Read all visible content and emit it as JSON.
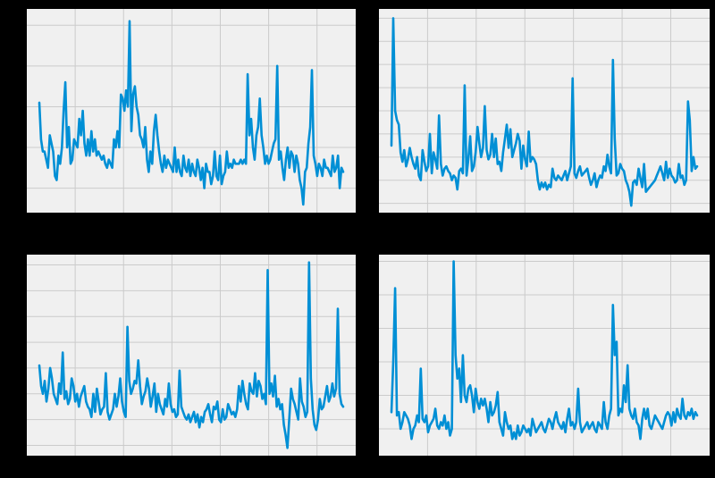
{
  "figure": {
    "background": "#000000",
    "panel_background": "#f0f0f0",
    "grid_color": "#cbcbcb",
    "line_color": "#008fd5"
  },
  "chart_data": [
    {
      "type": "line",
      "panel": "top-left",
      "title": "",
      "xlabel": "",
      "ylabel": "",
      "grid": true,
      "ylim": [
        0.4,
        5.4
      ],
      "y_ticks": [
        1,
        2,
        3,
        4,
        5
      ],
      "series": [
        {
          "name": "",
          "values": [
            3.1,
            2.2,
            1.9,
            1.9,
            1.7,
            1.5,
            2.3,
            2.1,
            1.9,
            1.3,
            1.2,
            1.8,
            1.6,
            2.0,
            2.9,
            3.6,
            2.0,
            2.5,
            1.6,
            1.7,
            2.2,
            2.1,
            2.0,
            2.7,
            2.3,
            2.9,
            2.1,
            1.8,
            2.2,
            1.8,
            2.4,
            1.9,
            2.2,
            1.8,
            1.9,
            1.8,
            1.7,
            1.8,
            1.6,
            1.5,
            1.7,
            1.6,
            1.5,
            2.2,
            2.0,
            2.4,
            2.0,
            3.3,
            3.2,
            2.9,
            3.4,
            3.0,
            5.1,
            2.4,
            3.3,
            3.5,
            3.0,
            2.8,
            2.3,
            2.2,
            2.0,
            2.5,
            1.7,
            1.4,
            1.9,
            1.6,
            2.4,
            2.8,
            2.3,
            1.9,
            1.6,
            1.4,
            1.8,
            1.5,
            1.7,
            1.6,
            1.5,
            1.4,
            2.0,
            1.4,
            1.7,
            1.4,
            1.3,
            1.8,
            1.5,
            1.4,
            1.7,
            1.3,
            1.6,
            1.4,
            1.3,
            1.7,
            1.5,
            1.2,
            1.5,
            1.0,
            1.6,
            1.4,
            1.4,
            1.1,
            1.3,
            1.9,
            1.3,
            1.2,
            1.8,
            1.1,
            1.3,
            1.4,
            1.9,
            1.5,
            1.6,
            1.5,
            1.7,
            1.6,
            1.6,
            1.6,
            1.7,
            1.6,
            1.7,
            1.6,
            3.8,
            2.3,
            2.7,
            2.0,
            1.7,
            2.3,
            2.5,
            3.2,
            2.3,
            2.0,
            1.6,
            1.8,
            1.6,
            1.7,
            1.9,
            2.1,
            2.2,
            4.0,
            1.7,
            1.9,
            1.5,
            1.2,
            1.7,
            2.0,
            1.5,
            1.9,
            1.8,
            1.4,
            1.8,
            1.6,
            1.2,
            1.0,
            0.6,
            1.4,
            1.5,
            2.1,
            2.5,
            3.9,
            1.8,
            1.6,
            1.3,
            1.6,
            1.5,
            1.3,
            1.7,
            1.5,
            1.5,
            1.4,
            1.3,
            1.8,
            1.4,
            1.5,
            1.8,
            1.0,
            1.5,
            1.4
          ]
        }
      ]
    },
    {
      "type": "line",
      "panel": "top-right",
      "title": "",
      "xlabel": "",
      "ylabel": "",
      "grid": true,
      "ylim": [
        0.6,
        9.4
      ],
      "y_ticks": [
        1,
        2,
        3,
        4,
        5,
        6,
        7,
        8,
        9
      ],
      "series": [
        {
          "name": "",
          "values": [
            3.5,
            9.0,
            5.0,
            4.6,
            4.4,
            3.2,
            2.8,
            3.3,
            2.6,
            2.9,
            3.4,
            3.0,
            2.7,
            2.5,
            3.0,
            2.2,
            2.0,
            3.3,
            2.8,
            2.4,
            2.6,
            4.0,
            2.3,
            3.2,
            2.9,
            2.5,
            4.8,
            2.7,
            2.2,
            2.5,
            2.6,
            2.4,
            2.3,
            2.0,
            2.2,
            2.1,
            1.6,
            2.4,
            2.5,
            2.3,
            6.1,
            2.2,
            2.9,
            3.9,
            2.4,
            2.6,
            3.2,
            4.3,
            3.6,
            3.0,
            3.4,
            5.2,
            3.3,
            2.9,
            3.1,
            4.0,
            3.0,
            3.8,
            2.7,
            2.8,
            2.4,
            3.2,
            3.8,
            4.4,
            3.4,
            4.2,
            3.0,
            3.3,
            3.6,
            4.0,
            3.7,
            2.5,
            3.5,
            2.9,
            2.6,
            4.1,
            2.8,
            3.0,
            2.9,
            2.7,
            2.0,
            1.6,
            1.9,
            1.7,
            1.9,
            1.6,
            1.8,
            1.7,
            2.5,
            2.1,
            2.0,
            2.2,
            2.1,
            2.0,
            2.2,
            2.4,
            2.0,
            2.3,
            2.6,
            6.4,
            2.3,
            2.1,
            2.4,
            2.6,
            2.2,
            2.3,
            2.4,
            2.5,
            2.1,
            1.8,
            2.0,
            2.3,
            1.7,
            2.0,
            2.2,
            2.1,
            2.6,
            2.4,
            3.1,
            2.6,
            2.3,
            7.2,
            3.8,
            2.2,
            2.3,
            2.7,
            2.5,
            2.4,
            2.0,
            1.8,
            1.5,
            0.9,
            1.9,
            2.0,
            1.8,
            2.5,
            2.1,
            1.7,
            2.7,
            1.5,
            1.6,
            1.7,
            1.8,
            1.9,
            2.0,
            2.2,
            2.4,
            2.6,
            2.3,
            2.0,
            2.8,
            2.1,
            2.5,
            2.2,
            2.1,
            1.9,
            2.0,
            2.7,
            2.1,
            2.2,
            1.8,
            2.0,
            5.4,
            4.6,
            2.4,
            3.0,
            2.5,
            2.6
          ]
        }
      ]
    },
    {
      "type": "line",
      "panel": "bottom-left",
      "title": "",
      "xlabel": "",
      "ylabel": "",
      "grid": true,
      "ylim": [
        0.6,
        8.4
      ],
      "y_ticks": [
        1,
        2,
        3,
        4,
        5,
        6,
        7,
        8
      ],
      "series": [
        {
          "name": "",
          "values": [
            4.1,
            3.3,
            3.0,
            3.5,
            2.7,
            3.2,
            4.0,
            3.6,
            3.0,
            2.8,
            2.6,
            3.4,
            3.0,
            4.6,
            2.8,
            3.1,
            2.6,
            2.8,
            3.6,
            3.3,
            2.7,
            3.0,
            2.5,
            2.9,
            3.1,
            3.3,
            2.7,
            2.5,
            2.4,
            2.1,
            3.0,
            2.3,
            3.2,
            2.7,
            2.2,
            2.4,
            2.5,
            3.8,
            2.3,
            2.0,
            2.2,
            2.4,
            3.0,
            2.5,
            2.9,
            3.6,
            2.7,
            2.3,
            2.1,
            5.6,
            3.5,
            3.0,
            3.2,
            3.5,
            3.4,
            4.3,
            3.3,
            2.6,
            2.9,
            3.1,
            3.6,
            3.2,
            2.5,
            2.9,
            3.4,
            2.3,
            3.0,
            2.6,
            2.4,
            2.2,
            2.8,
            2.5,
            3.4,
            2.6,
            2.3,
            2.4,
            2.1,
            2.2,
            3.9,
            2.5,
            2.3,
            2.1,
            2.0,
            2.2,
            1.9,
            2.1,
            2.3,
            1.9,
            2.2,
            1.7,
            2.1,
            1.9,
            2.3,
            2.4,
            2.6,
            2.2,
            1.9,
            2.5,
            2.4,
            2.7,
            2.0,
            1.9,
            2.4,
            2.0,
            2.1,
            2.6,
            2.4,
            2.2,
            2.3,
            2.1,
            2.4,
            3.3,
            2.7,
            3.5,
            3.0,
            2.6,
            2.4,
            3.4,
            3.1,
            3.0,
            3.8,
            2.9,
            3.5,
            3.3,
            2.8,
            3.0,
            2.6,
            7.8,
            3.0,
            3.4,
            2.9,
            3.7,
            2.5,
            2.8,
            2.4,
            2.6,
            1.8,
            1.4,
            0.9,
            2.0,
            3.2,
            2.8,
            2.6,
            2.3,
            2.0,
            3.6,
            2.7,
            2.5,
            2.1,
            2.3,
            8.1,
            3.6,
            2.4,
            1.8,
            1.6,
            2.0,
            2.8,
            2.4,
            2.5,
            2.9,
            3.3,
            2.7,
            2.9,
            3.4,
            2.9,
            3.2,
            6.3,
            3.0,
            2.6,
            2.5
          ]
        }
      ]
    },
    {
      "type": "line",
      "panel": "bottom-right",
      "title": "",
      "xlabel": "",
      "ylabel": "",
      "grid": true,
      "ylim": [
        0.2,
        6.2
      ],
      "y_ticks": [
        1,
        2,
        3,
        4,
        5,
        6
      ],
      "series": [
        {
          "name": "",
          "values": [
            1.5,
            3.0,
            5.2,
            1.4,
            1.5,
            1.0,
            1.2,
            1.5,
            1.4,
            1.3,
            1.1,
            0.7,
            1.0,
            1.1,
            1.4,
            1.2,
            2.8,
            1.3,
            1.2,
            1.4,
            0.9,
            1.1,
            1.2,
            1.3,
            1.6,
            1.1,
            1.0,
            1.2,
            1.1,
            1.4,
            1.0,
            1.2,
            0.8,
            1.0,
            6.0,
            3.2,
            2.5,
            2.8,
            1.8,
            3.2,
            2.0,
            1.8,
            2.2,
            2.3,
            2.0,
            1.5,
            2.2,
            1.8,
            1.6,
            1.9,
            1.7,
            1.9,
            1.6,
            1.2,
            1.8,
            1.4,
            1.5,
            1.7,
            2.1,
            1.2,
            1.0,
            0.8,
            1.5,
            1.2,
            1.0,
            1.1,
            0.7,
            0.9,
            0.7,
            1.1,
            0.8,
            0.9,
            1.1,
            1.0,
            0.9,
            1.0,
            0.8,
            1.3,
            1.1,
            0.9,
            1.0,
            1.1,
            1.2,
            1.0,
            0.9,
            1.1,
            1.3,
            1.2,
            1.0,
            1.3,
            1.5,
            1.2,
            1.1,
            1.0,
            1.2,
            0.9,
            1.3,
            1.6,
            1.1,
            1.2,
            1.0,
            1.2,
            2.2,
            1.2,
            0.9,
            1.0,
            1.1,
            1.2,
            1.0,
            1.1,
            1.2,
            1.0,
            0.9,
            1.2,
            1.1,
            1.0,
            1.8,
            1.2,
            1.0,
            1.4,
            1.6,
            4.7,
            3.2,
            3.6,
            1.4,
            1.6,
            1.5,
            2.3,
            1.8,
            2.9,
            1.6,
            1.4,
            1.3,
            1.6,
            1.2,
            1.1,
            0.7,
            1.3,
            1.6,
            1.3,
            1.6,
            1.1,
            1.0,
            1.2,
            1.4,
            1.3,
            1.2,
            1.1,
            1.0,
            1.2,
            1.4,
            1.5,
            1.4,
            1.1,
            1.5,
            1.2,
            1.6,
            1.4,
            1.3,
            1.9,
            1.4,
            1.3,
            1.5,
            1.4,
            1.6,
            1.3,
            1.5,
            1.4
          ]
        }
      ]
    }
  ]
}
